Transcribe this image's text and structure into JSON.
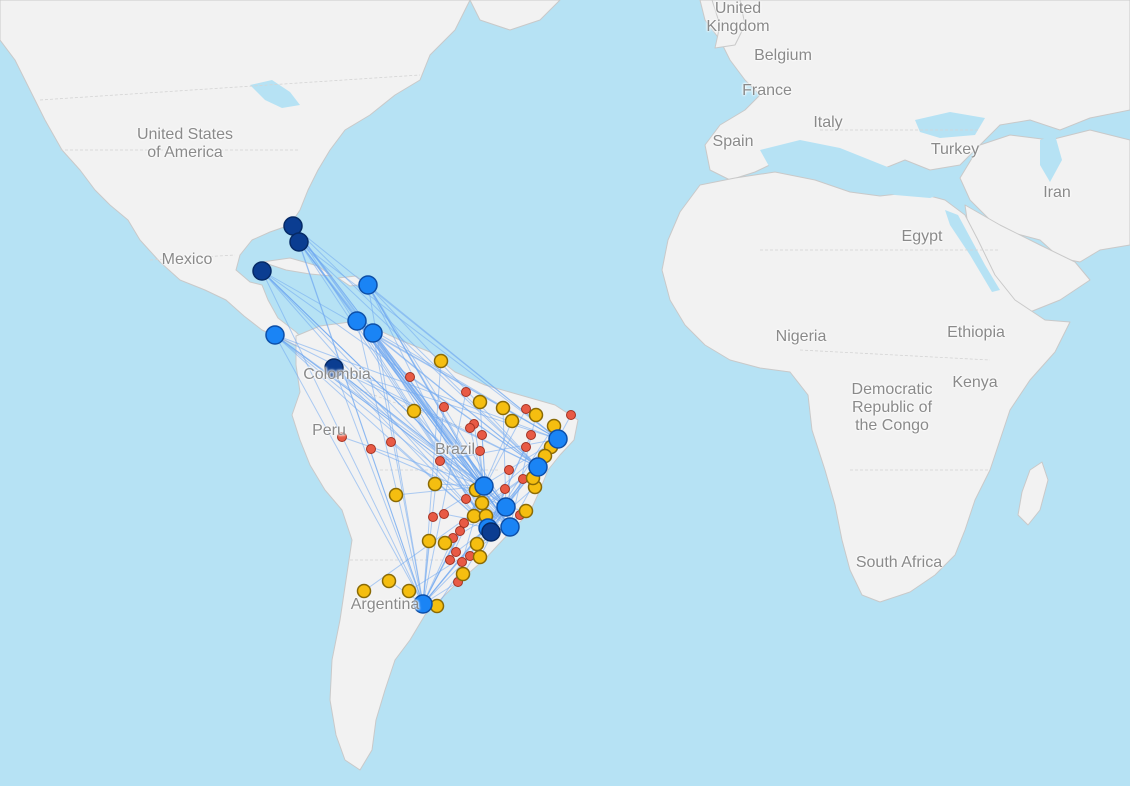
{
  "map": {
    "colors": {
      "ocean": "#b6e2f4",
      "land": "#f2f2f2",
      "route": "#6fa8f0",
      "hub_dark": "#0b3d91",
      "hub_blue": "#1a84f5",
      "medium_yellow": "#f5be10",
      "small_red": "#e85a45"
    },
    "labels": {
      "united_kingdom": "United\nKingdom",
      "belgium": "Belgium",
      "france": "France",
      "italy": "Italy",
      "spain": "Spain",
      "turkey": "Turkey",
      "iran": "Iran",
      "usa": "United States\nof America",
      "mexico": "Mexico",
      "egypt": "Egypt",
      "nigeria": "Nigeria",
      "ethiopia": "Ethiopia",
      "kenya": "Kenya",
      "drc": "Democratic\nRepublic of\nthe Congo",
      "colombia": "Colombia",
      "peru": "Peru",
      "brazil": "Brazil",
      "south_africa": "South Africa",
      "argentina": "Argentina"
    }
  }
}
